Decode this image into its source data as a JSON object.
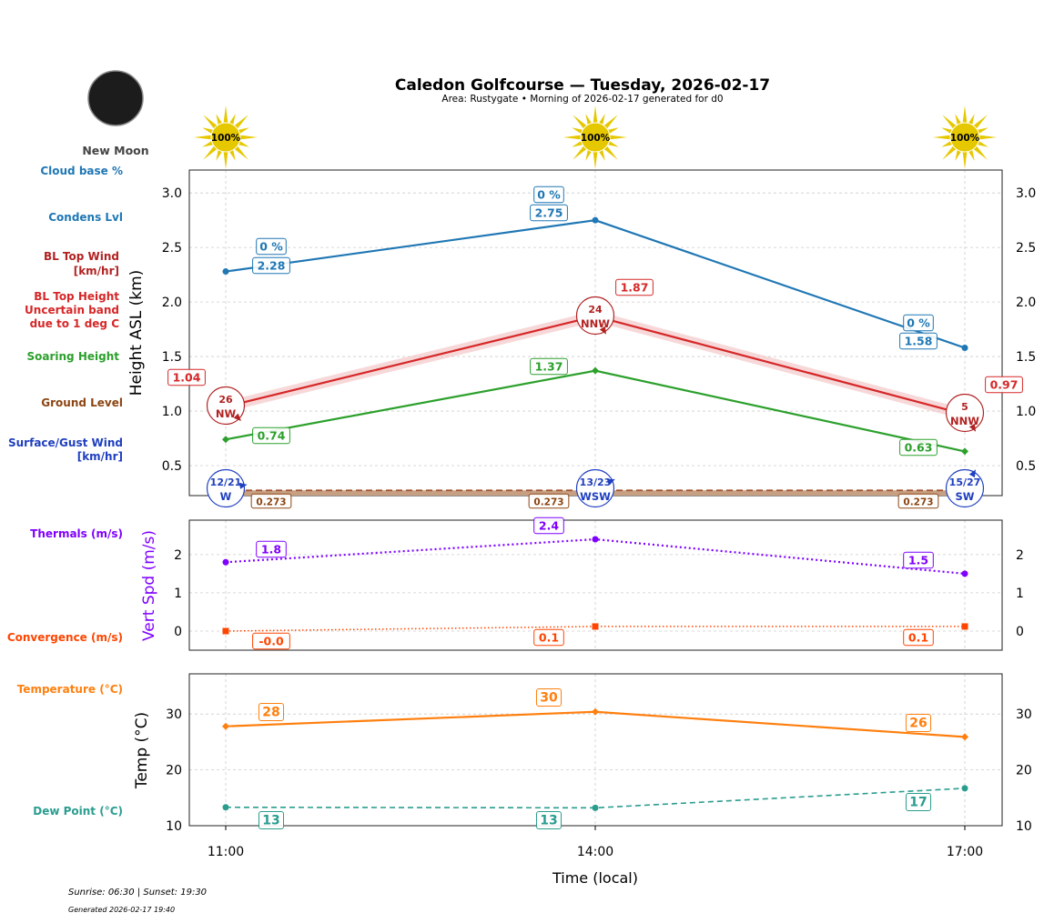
{
  "header": {
    "title": "Caledon Golfcourse — Tuesday, 2026-02-17",
    "subtitle": "Area: Rustygate • Morning of 2026-02-17 generated for d0",
    "moon_phase": "New Moon"
  },
  "footer": {
    "sun_times": "Sunrise: 06:30 | Sunset: 19:30",
    "generated": "Generated 2026-02-17 19:40"
  },
  "side_labels": {
    "cloud_base": "Cloud base %",
    "condens": "Condens Lvl",
    "bl_wind_1": "BL Top Wind",
    "bl_wind_2": "[km/hr]",
    "bl_top_1": "BL Top Height",
    "bl_top_2": "Uncertain band",
    "bl_top_3": "due to 1 deg C",
    "soaring": "Soaring Height",
    "ground": "Ground Level",
    "surface_1": "Surface/Gust Wind",
    "surface_2": "[km/hr]",
    "thermals": "Thermals (m/s)",
    "convergence": "Convergence (m/s)",
    "temperature": "Temperature (°C)",
    "dewpoint": "Dew Point (°C)"
  },
  "colors": {
    "cloud": "#1f77b4",
    "bl_wind": "#b22222",
    "bl_top": "#d62728",
    "band": "#f4c7c9",
    "soaring": "#2ca02c",
    "ground": "#8b4513",
    "surface": "#1f3fbf",
    "thermals": "#7f00ff",
    "convergence": "#ff4500",
    "temperature": "#ff7f0e",
    "dewpoint": "#2a9d8f",
    "sun": "#e6c800"
  },
  "sun_icons": [
    "100%",
    "100%",
    "100%"
  ],
  "chart_data": [
    {
      "type": "line",
      "ylabel": "Height ASL (km)",
      "ylim": [
        0.225,
        3.21
      ],
      "yticks": [
        "0.5",
        "1.0",
        "1.5",
        "2.0",
        "2.5",
        "3.0"
      ],
      "categories": [
        "11:00",
        "14:00",
        "17:00"
      ],
      "grid": true,
      "series": [
        {
          "name": "Condens Lvl",
          "values": [
            2.28,
            2.75,
            1.58
          ],
          "labels": [
            "2.28",
            "2.75",
            "1.58"
          ],
          "cloud_pct": [
            "0 %",
            "0 %",
            "0 %"
          ]
        },
        {
          "name": "BL Top Height",
          "values": [
            1.04,
            1.87,
            0.97
          ],
          "labels": [
            "1.04",
            "1.87",
            "0.97"
          ],
          "band": 0.05
        },
        {
          "name": "Soaring Height",
          "values": [
            0.74,
            1.37,
            0.63
          ],
          "labels": [
            "0.74",
            "1.37",
            "0.63"
          ]
        },
        {
          "name": "Ground Level",
          "values": [
            0.273,
            0.273,
            0.273
          ],
          "labels": [
            "0.273",
            "0.273",
            "0.273"
          ]
        }
      ],
      "bl_top_wind": [
        {
          "speed": "26",
          "dir": "NW"
        },
        {
          "speed": "24",
          "dir": "NNW"
        },
        {
          "speed": "5",
          "dir": "NNW"
        }
      ],
      "surface_wind": [
        {
          "speed": "12/21",
          "dir": "W"
        },
        {
          "speed": "13/23",
          "dir": "WSW"
        },
        {
          "speed": "15/27",
          "dir": "SW"
        }
      ]
    },
    {
      "type": "line",
      "ylabel": "Vert Spd (m/s)",
      "ylim": [
        -0.5,
        2.9
      ],
      "yticks": [
        "0",
        "1",
        "2"
      ],
      "categories": [
        "11:00",
        "14:00",
        "17:00"
      ],
      "grid": true,
      "series": [
        {
          "name": "Thermals (m/s)",
          "values": [
            1.8,
            2.4,
            1.5
          ],
          "labels": [
            "1.8",
            "2.4",
            "1.5"
          ]
        },
        {
          "name": "Convergence (m/s)",
          "values": [
            0.0,
            0.12,
            0.12
          ],
          "labels": [
            "-0.0",
            "0.1",
            "0.1"
          ]
        }
      ]
    },
    {
      "type": "line",
      "ylabel": "Temp (°C)",
      "xlabel": "Time (local)",
      "ylim": [
        10,
        37.2
      ],
      "yticks": [
        "10",
        "20",
        "30"
      ],
      "categories": [
        "11:00",
        "14:00",
        "17:00"
      ],
      "grid": true,
      "series": [
        {
          "name": "Temperature (°C)",
          "values": [
            27.8,
            30.4,
            25.9
          ],
          "labels": [
            "28",
            "30",
            "26"
          ]
        },
        {
          "name": "Dew Point (°C)",
          "values": [
            13.3,
            13.2,
            16.7
          ],
          "labels": [
            "13",
            "13",
            "17"
          ]
        }
      ]
    }
  ]
}
